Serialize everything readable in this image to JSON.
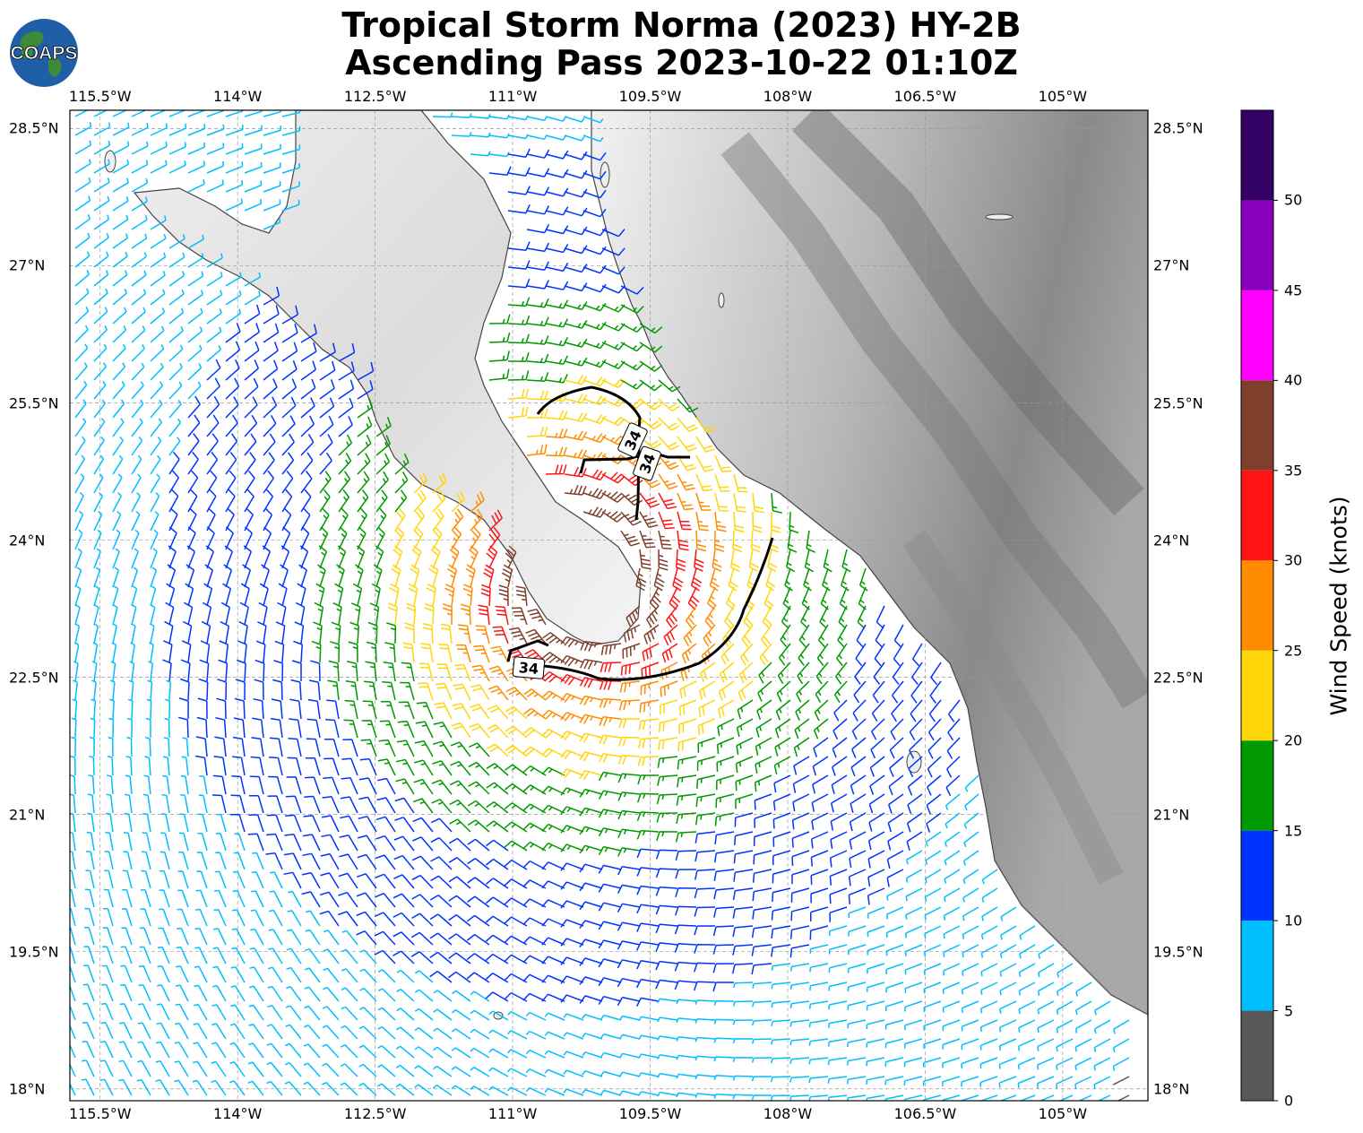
{
  "title_line1": "Tropical Storm Norma (2023) HY-2B",
  "title_line2": "Ascending Pass 2023-10-22 01:10Z",
  "logo_text": "COAPS",
  "lon_labels": [
    "115.5°W",
    "114°W",
    "112.5°W",
    "111°W",
    "109.5°W",
    "108°W",
    "106.5°W",
    "105°W"
  ],
  "lat_labels": [
    "28.5°N",
    "27°N",
    "25.5°N",
    "24°N",
    "22.5°N",
    "21°N",
    "19.5°N",
    "18°N"
  ],
  "colorbar": {
    "title": "Wind Speed (knots)",
    "bounds": [
      0,
      5,
      10,
      15,
      20,
      25,
      30,
      35,
      40,
      45,
      50,
      55
    ],
    "tick_labels": [
      "0",
      "5",
      "10",
      "15",
      "20",
      "25",
      "30",
      "35",
      "40",
      "45",
      "50"
    ],
    "colors": [
      "#585858",
      "#00bfff",
      "#0033ff",
      "#009900",
      "#ffd60a",
      "#ff8c00",
      "#ff1414",
      "#7f3f2a",
      "#ff00ff",
      "#8800bb",
      "#330066"
    ]
  },
  "contour_label": "34",
  "map_extent": {
    "lon_min": -115.83,
    "lon_max": -104.07,
    "lat_min": 17.87,
    "lat_max": 28.7
  },
  "storm_center": {
    "lon": -110.2,
    "lat": 23.6
  },
  "terrain": "grayscale elevation shading over Baja California and mainland Mexico"
}
